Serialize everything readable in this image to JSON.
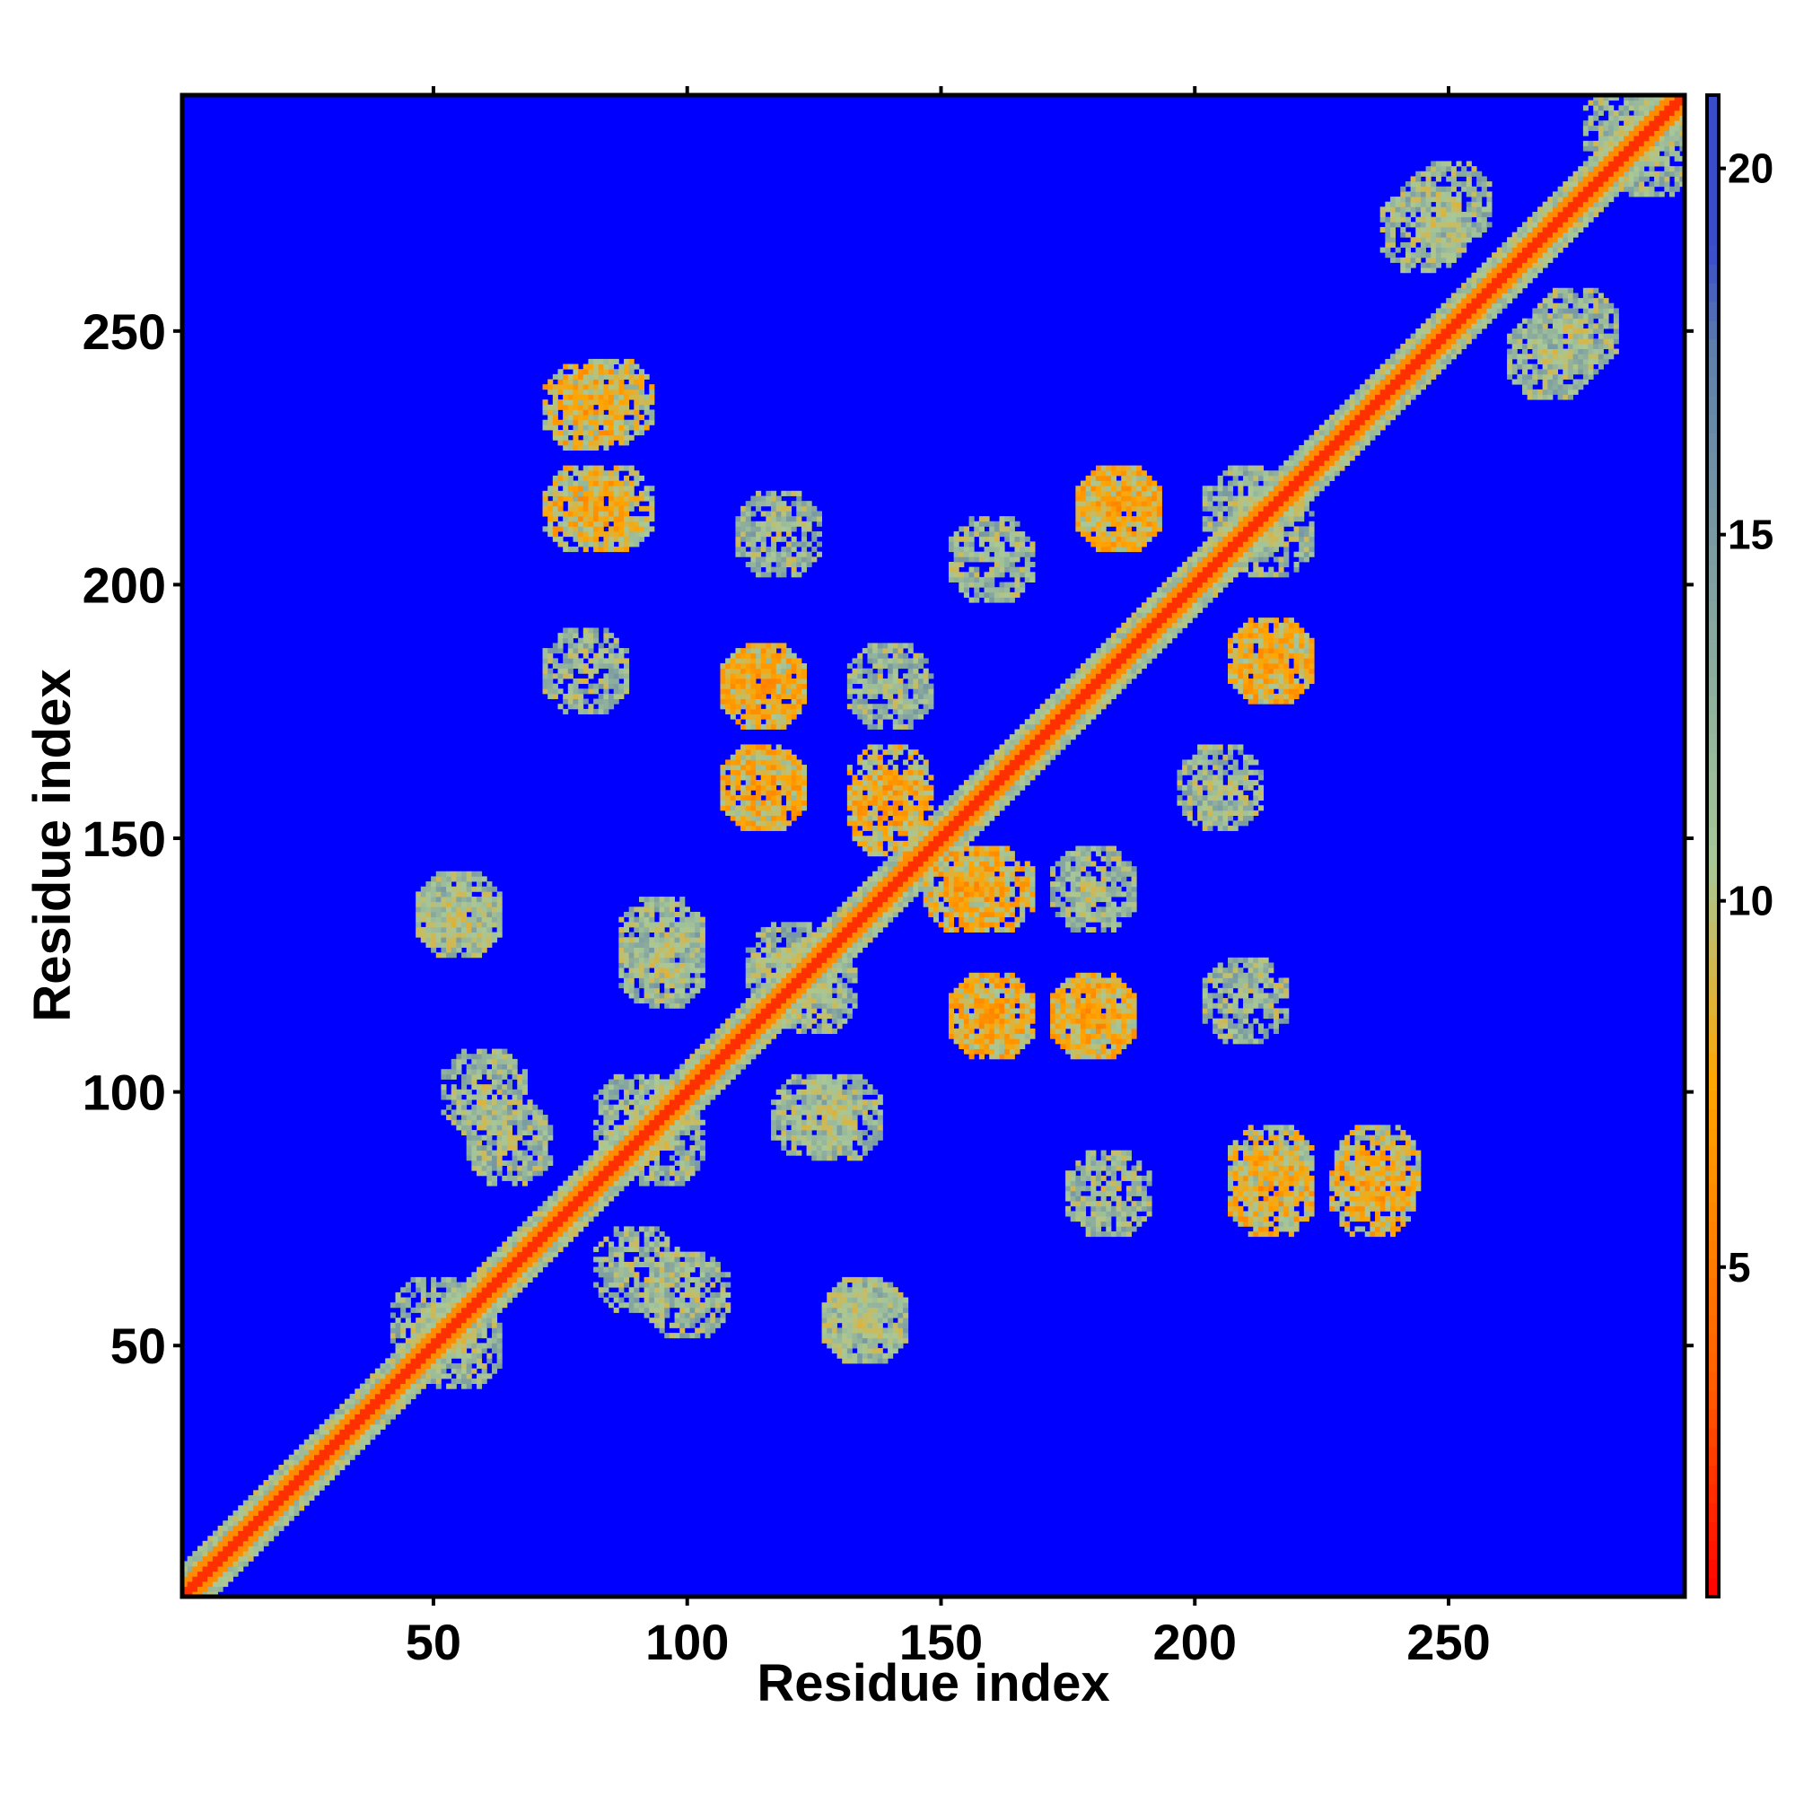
{
  "chart_data": {
    "type": "heatmap",
    "title": "",
    "xlabel": "Residue index",
    "ylabel": "Residue index",
    "n_residues": 296,
    "xlim": [
      0.5,
      296.5
    ],
    "ylim": [
      0.5,
      296.5
    ],
    "x_ticks": [
      50,
      100,
      150,
      200,
      250
    ],
    "y_ticks": [
      50,
      100,
      150,
      200,
      250
    ],
    "colorbar": {
      "min": 0.5,
      "max": 21,
      "ticks": [
        5,
        10,
        15,
        20
      ],
      "colors": [
        "#ff0000",
        "#ff6000",
        "#ffa500",
        "#a8c898",
        "#5f80a8",
        "#0000ff"
      ]
    },
    "background_value": 21,
    "diagonal_band": {
      "core_value": 2,
      "near_value": 6,
      "halo_value": 11,
      "halo_width": 6
    },
    "contact_blobs": [
      {
        "x": 85,
        "y": 236,
        "value": 9
      },
      {
        "x": 85,
        "y": 215,
        "value": 9
      },
      {
        "x": 118,
        "y": 210,
        "value": 11
      },
      {
        "x": 115,
        "y": 180,
        "value": 8
      },
      {
        "x": 80,
        "y": 183,
        "value": 11
      },
      {
        "x": 115,
        "y": 160,
        "value": 8
      },
      {
        "x": 140,
        "y": 155,
        "value": 8
      },
      {
        "x": 55,
        "y": 135,
        "value": 11
      },
      {
        "x": 95,
        "y": 130,
        "value": 11
      },
      {
        "x": 120,
        "y": 125,
        "value": 11
      },
      {
        "x": 60,
        "y": 100,
        "value": 11
      },
      {
        "x": 90,
        "y": 95,
        "value": 11
      },
      {
        "x": 125,
        "y": 95,
        "value": 11
      },
      {
        "x": 90,
        "y": 65,
        "value": 11
      },
      {
        "x": 50,
        "y": 55,
        "value": 11
      },
      {
        "x": 135,
        "y": 55,
        "value": 11
      },
      {
        "x": 160,
        "y": 115,
        "value": 8
      },
      {
        "x": 160,
        "y": 140,
        "value": 8
      },
      {
        "x": 180,
        "y": 115,
        "value": 8
      },
      {
        "x": 180,
        "y": 140,
        "value": 11
      },
      {
        "x": 185,
        "y": 215,
        "value": 8
      },
      {
        "x": 210,
        "y": 215,
        "value": 11
      },
      {
        "x": 215,
        "y": 185,
        "value": 8
      },
      {
        "x": 205,
        "y": 160,
        "value": 11
      },
      {
        "x": 215,
        "y": 80,
        "value": 8
      },
      {
        "x": 235,
        "y": 80,
        "value": 8
      },
      {
        "x": 270,
        "y": 245,
        "value": 11
      },
      {
        "x": 250,
        "y": 275,
        "value": 11
      },
      {
        "x": 290,
        "y": 285,
        "value": 11
      }
    ]
  }
}
